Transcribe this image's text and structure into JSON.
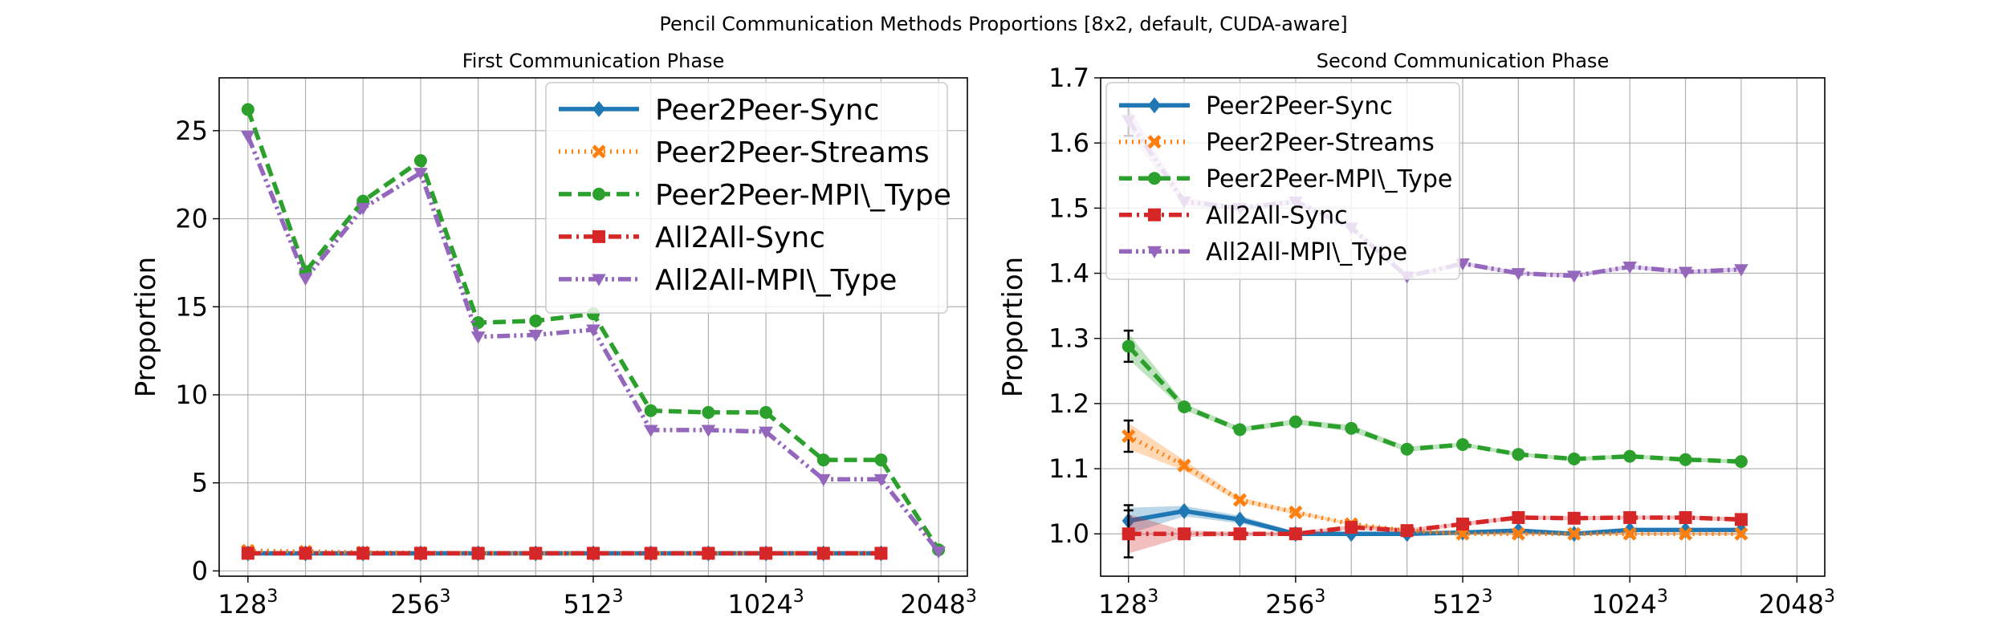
{
  "figure": {
    "suptitle": "Pencil Communication Methods Proportions [8x2, default, CUDA-aware]"
  },
  "x_ticks": [
    {
      "value": 0,
      "base": "128",
      "exp": "3"
    },
    {
      "value": 3,
      "base": "256",
      "exp": "3"
    },
    {
      "value": 6,
      "base": "512",
      "exp": "3"
    },
    {
      "value": 9,
      "base": "1024",
      "exp": "3"
    },
    {
      "value": 12,
      "base": "2048",
      "exp": "3"
    }
  ],
  "x_positions": [
    0,
    1,
    2,
    3,
    4,
    5,
    6,
    7,
    8,
    9,
    10,
    11,
    12
  ],
  "legend_series": [
    "Peer2Peer-Sync",
    "Peer2Peer-Streams",
    "Peer2Peer-MPI\\_Type",
    "All2All-Sync",
    "All2All-MPI\\_Type"
  ],
  "series_style": {
    "Peer2Peer-Sync": {
      "color": "#1f77b4",
      "dash": "solid",
      "marker": "diamond"
    },
    "Peer2Peer-Streams": {
      "color": "#ff7f0e",
      "dash": "dotted",
      "marker": "x"
    },
    "Peer2Peer-MPI\\_Type": {
      "color": "#2ca02c",
      "dash": "dashed",
      "marker": "circle"
    },
    "All2All-Sync": {
      "color": "#d62728",
      "dash": "dashdot",
      "marker": "square"
    },
    "All2All-MPI\\_Type": {
      "color": "#9467bd",
      "dash": "dashdotdot",
      "marker": "triangle-down"
    }
  },
  "chart_data": [
    {
      "type": "line",
      "title": "First Communication Phase",
      "xlabel": "",
      "ylabel": "Proportion",
      "xlim": [
        -0.5,
        12.5
      ],
      "ylim": [
        -0.3,
        28
      ],
      "yticks": [
        0,
        5,
        10,
        15,
        20,
        25
      ],
      "grid": true,
      "legend_position": "top-right",
      "series": [
        {
          "name": "Peer2Peer-Sync",
          "x": [
            0,
            1,
            2,
            3,
            4,
            5,
            6,
            7,
            8,
            9,
            10,
            11
          ],
          "values": [
            1.0,
            1.0,
            1.0,
            1.0,
            1.0,
            1.0,
            1.0,
            1.0,
            1.0,
            1.0,
            1.0,
            1.0
          ]
        },
        {
          "name": "Peer2Peer-Streams",
          "x": [
            0,
            1,
            2,
            3,
            4,
            5,
            6,
            7,
            8,
            9,
            10,
            11
          ],
          "values": [
            1.15,
            1.1,
            1.05,
            1.03,
            1.01,
            1.0,
            1.0,
            1.0,
            1.0,
            1.0,
            1.0,
            1.0
          ]
        },
        {
          "name": "Peer2Peer-MPI\\_Type",
          "x": [
            0,
            1,
            2,
            3,
            4,
            5,
            6,
            7,
            8,
            9,
            10,
            11,
            12
          ],
          "values": [
            26.2,
            17.0,
            21.0,
            23.3,
            14.1,
            14.2,
            14.6,
            9.1,
            9.0,
            9.0,
            6.3,
            6.3,
            1.2
          ]
        },
        {
          "name": "All2All-Sync",
          "x": [
            0,
            1,
            2,
            3,
            4,
            5,
            6,
            7,
            8,
            9,
            10,
            11
          ],
          "values": [
            1.0,
            1.0,
            1.0,
            1.0,
            1.0,
            1.0,
            1.0,
            1.0,
            1.0,
            1.0,
            1.0,
            1.0
          ]
        },
        {
          "name": "All2All-MPI\\_Type",
          "x": [
            0,
            1,
            2,
            3,
            4,
            5,
            6,
            7,
            8,
            9,
            10,
            11,
            12
          ],
          "values": [
            24.7,
            16.6,
            20.6,
            22.6,
            13.3,
            13.4,
            13.7,
            8.0,
            8.0,
            7.9,
            5.2,
            5.2,
            1.1
          ]
        }
      ]
    },
    {
      "type": "line",
      "title": "Second Communication Phase",
      "xlabel": "",
      "ylabel": "Proportion",
      "xlim": [
        -0.5,
        12.5
      ],
      "ylim": [
        0.935,
        1.7
      ],
      "yticks": [
        1.0,
        1.1,
        1.2,
        1.3,
        1.4,
        1.5,
        1.6,
        1.7
      ],
      "grid": true,
      "legend_position": "top-left",
      "series": [
        {
          "name": "Peer2Peer-Sync",
          "x": [
            0,
            1,
            2,
            3,
            4,
            5,
            6,
            7,
            8,
            9,
            10,
            11
          ],
          "values": [
            1.02,
            1.035,
            1.022,
            1.0,
            1.0,
            1.0,
            1.002,
            1.005,
            1.0,
            1.006,
            1.006,
            1.006
          ],
          "band": [
            0.02,
            0.008,
            0.006,
            0.003,
            0.002,
            0.002,
            0.002,
            0.002,
            0.002,
            0.002,
            0.002,
            0.002
          ]
        },
        {
          "name": "Peer2Peer-Streams",
          "x": [
            0,
            1,
            2,
            3,
            4,
            5,
            6,
            7,
            8,
            9,
            10,
            11
          ],
          "values": [
            1.15,
            1.105,
            1.052,
            1.033,
            1.015,
            1.005,
            1.0,
            1.0,
            1.0,
            1.0,
            1.0,
            1.0
          ],
          "band": [
            0.02,
            0.008,
            0.004,
            0.003,
            0.002,
            0.002,
            0.002,
            0.002,
            0.002,
            0.002,
            0.002,
            0.002
          ]
        },
        {
          "name": "Peer2Peer-MPI\\_Type",
          "x": [
            0,
            1,
            2,
            3,
            4,
            5,
            6,
            7,
            8,
            9,
            10,
            11
          ],
          "values": [
            1.288,
            1.195,
            1.16,
            1.172,
            1.162,
            1.13,
            1.137,
            1.122,
            1.115,
            1.119,
            1.114,
            1.111
          ],
          "band": [
            0.02,
            0.005,
            0.004,
            0.004,
            0.005,
            0.004,
            0.003,
            0.003,
            0.003,
            0.003,
            0.003,
            0.003
          ]
        },
        {
          "name": "All2All-Sync",
          "x": [
            0,
            1,
            2,
            3,
            4,
            5,
            6,
            7,
            8,
            9,
            10,
            11
          ],
          "values": [
            1.0,
            1.0,
            1.0,
            1.0,
            1.01,
            1.005,
            1.015,
            1.025,
            1.024,
            1.025,
            1.025,
            1.022
          ],
          "band": [
            0.03,
            0.005,
            0.003,
            0.003,
            0.003,
            0.003,
            0.003,
            0.003,
            0.003,
            0.003,
            0.003,
            0.003
          ]
        },
        {
          "name": "All2All-MPI\\_Type",
          "x": [
            0,
            1,
            2,
            3,
            4,
            5,
            6,
            7,
            8,
            9,
            10,
            11
          ],
          "values": [
            1.635,
            1.51,
            1.5,
            1.51,
            1.47,
            1.395,
            1.415,
            1.4,
            1.396,
            1.41,
            1.402,
            1.406
          ],
          "band": [
            0.02,
            0.006,
            0.004,
            0.005,
            0.005,
            0.004,
            0.003,
            0.003,
            0.003,
            0.003,
            0.003,
            0.003
          ]
        }
      ]
    }
  ]
}
